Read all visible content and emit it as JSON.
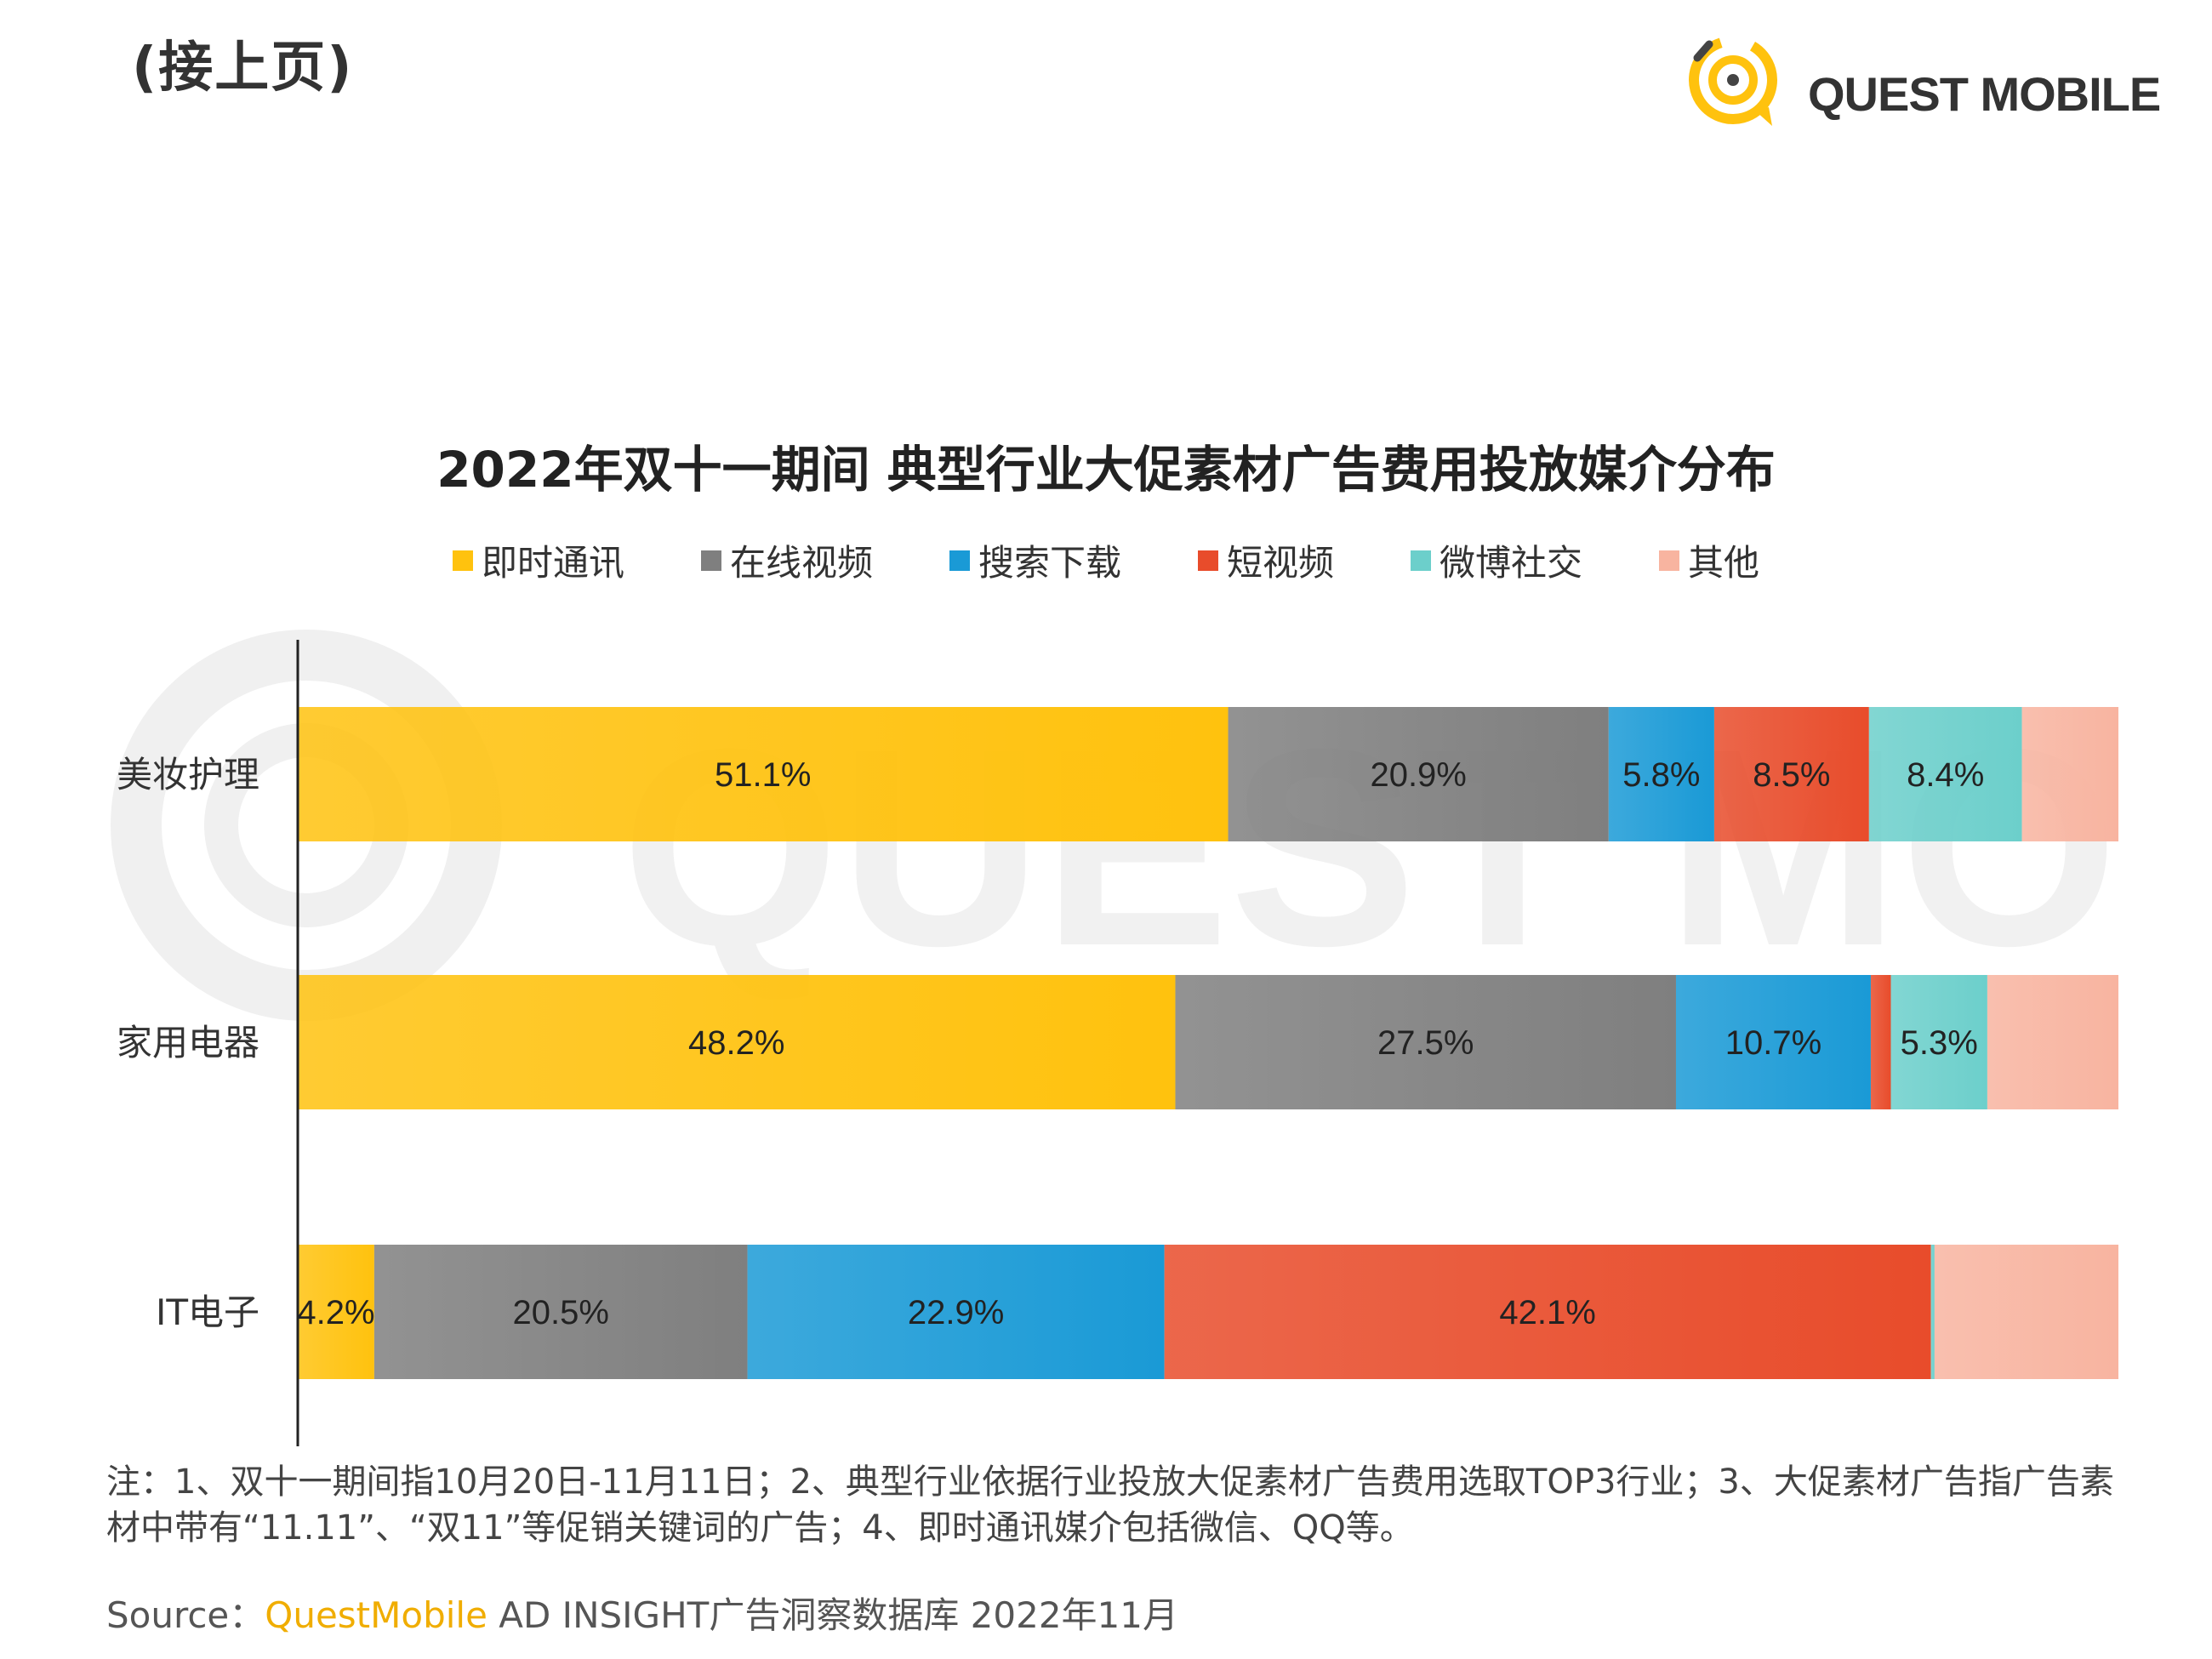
{
  "header": {
    "continued_label": "(接上页)",
    "logo_text": "QUEST MOBILE"
  },
  "notes": "注：1、双十一期间指10月20日-11月11日；2、典型行业依据行业投放大促素材广告费用选取TOP3行业；3、大促素材广告指广告素材中带有“11.11”、“双11”等促销关键词的广告；4、即时通讯媒介包括微信、QQ等。",
  "source": {
    "prefix": "Source：",
    "brand": "QuestMobile",
    "rest": " AD INSIGHT广告洞察数据库 2022年11月"
  },
  "chart_data": {
    "type": "bar",
    "orientation": "horizontal",
    "stacked": true,
    "percent": true,
    "title": "2022年双十一期间 典型行业大促素材广告费用投放媒介分布",
    "categories": [
      "美妆护理",
      "家用电器",
      "IT电子"
    ],
    "xlim": [
      0,
      100
    ],
    "legend_position": "top",
    "grid": false,
    "series": [
      {
        "name": "即时通讯",
        "color": "#FFC20E",
        "values": [
          51.1,
          48.2,
          4.2
        ],
        "labels": [
          "51.1%",
          "48.2%",
          "4.2%"
        ]
      },
      {
        "name": "在线视频",
        "color": "#7F7F7F",
        "values": [
          20.9,
          27.5,
          20.5
        ],
        "labels": [
          "20.9%",
          "27.5%",
          "20.5%"
        ]
      },
      {
        "name": "搜索下载",
        "color": "#1A9AD6",
        "values": [
          5.8,
          10.7,
          22.9
        ],
        "labels": [
          "5.8%",
          "10.7%",
          "22.9%"
        ]
      },
      {
        "name": "短视频",
        "color": "#E84C2B",
        "values": [
          8.5,
          1.1,
          42.1
        ],
        "labels": [
          "8.5%",
          "",
          "42.1%"
        ]
      },
      {
        "name": "微博社交",
        "color": "#6CCFCB",
        "values": [
          8.4,
          5.3,
          0.2
        ],
        "labels": [
          "8.4%",
          "5.3%",
          ""
        ]
      },
      {
        "name": "其他",
        "color": "#F8B4A0",
        "values": [
          5.3,
          7.2,
          10.1
        ],
        "labels": [
          "",
          "",
          ""
        ]
      }
    ]
  }
}
